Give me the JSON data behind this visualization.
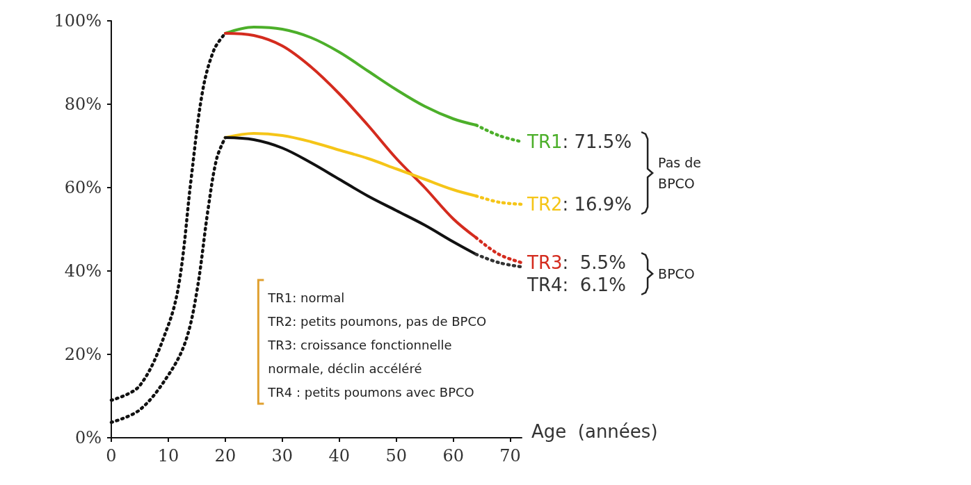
{
  "chart_data": {
    "type": "line",
    "xlabel": "Age  (années)",
    "xlim": [
      0,
      72
    ],
    "xticks": [
      0,
      10,
      20,
      30,
      40,
      50,
      60,
      70
    ],
    "ylim": [
      0,
      100
    ],
    "yticks": [
      {
        "value": 0,
        "label": "0%"
      },
      {
        "value": 20,
        "label": "20%"
      },
      {
        "value": 40,
        "label": "40%"
      },
      {
        "value": 60,
        "label": "60%"
      },
      {
        "value": 80,
        "label": "80%"
      },
      {
        "value": 100,
        "label": "100%"
      }
    ],
    "grid": false,
    "legend": false,
    "marker": "none",
    "series": [
      {
        "color": "#111111",
        "line_style": "dotted",
        "x": [
          0,
          5,
          10,
          12,
          14,
          16,
          18,
          20
        ],
        "values": [
          9,
          12.5,
          27,
          38,
          62,
          83,
          93,
          97
        ]
      },
      {
        "color": "#111111",
        "line_style": "dotted",
        "x": [
          0,
          5,
          10,
          13,
          15,
          17,
          18.5,
          20
        ],
        "values": [
          3.7,
          6.7,
          15,
          23,
          35,
          55,
          67,
          72
        ]
      },
      {
        "color": "#4caf2a",
        "line_style": "solid",
        "x": [
          20,
          25,
          30,
          35,
          40,
          45,
          50,
          55,
          60,
          64
        ],
        "values": [
          97,
          98.5,
          98,
          96,
          92.5,
          88,
          83.5,
          79.5,
          76.5,
          75
        ]
      },
      {
        "color": "#d42b1e",
        "line_style": "solid",
        "x": [
          20,
          25,
          30,
          35,
          40,
          45,
          50,
          55,
          60,
          64
        ],
        "values": [
          97,
          96.5,
          94,
          89,
          82.5,
          75,
          67,
          60,
          52.5,
          48
        ]
      },
      {
        "color": "#f5c518",
        "line_style": "solid",
        "x": [
          20,
          25,
          30,
          35,
          40,
          45,
          50,
          55,
          60,
          64
        ],
        "values": [
          72,
          73,
          72.5,
          71,
          69,
          67,
          64.5,
          62,
          59.5,
          58
        ]
      },
      {
        "color": "#111111",
        "line_style": "solid",
        "x": [
          20,
          25,
          30,
          35,
          40,
          45,
          50,
          55,
          60,
          64
        ],
        "values": [
          72,
          71.5,
          69.5,
          66,
          62,
          58,
          54.5,
          51,
          47,
          44
        ]
      },
      {
        "name": "TR1",
        "color": "#4caf2a",
        "line_style": "dotted",
        "x": [
          64,
          68,
          72
        ],
        "values": [
          75,
          72.5,
          71
        ]
      },
      {
        "name": "TR2",
        "color": "#f5c518",
        "line_style": "dotted",
        "x": [
          64,
          68,
          72
        ],
        "values": [
          58,
          56.5,
          56
        ]
      },
      {
        "name": "TR3",
        "color": "#d42b1e",
        "line_style": "dotted",
        "x": [
          64,
          68,
          72
        ],
        "values": [
          48,
          44,
          42
        ]
      },
      {
        "name": "TR4",
        "color": "#333333",
        "line_style": "dotted",
        "x": [
          64,
          68,
          72
        ],
        "values": [
          44,
          42,
          41
        ]
      }
    ],
    "annotations": [
      ": 71.5%",
      ": 16.9%",
      ":  5.5%",
      ":  6.1%",
      "TR1: normal",
      "TR2: petits poumons, pas de BPCO",
      "TR3: croissance fonctionnelle normale, déclin accéléré",
      "TR4 : petits poumons avec BPCO",
      "Pas de BPCO",
      "BPCO"
    ]
  }
}
